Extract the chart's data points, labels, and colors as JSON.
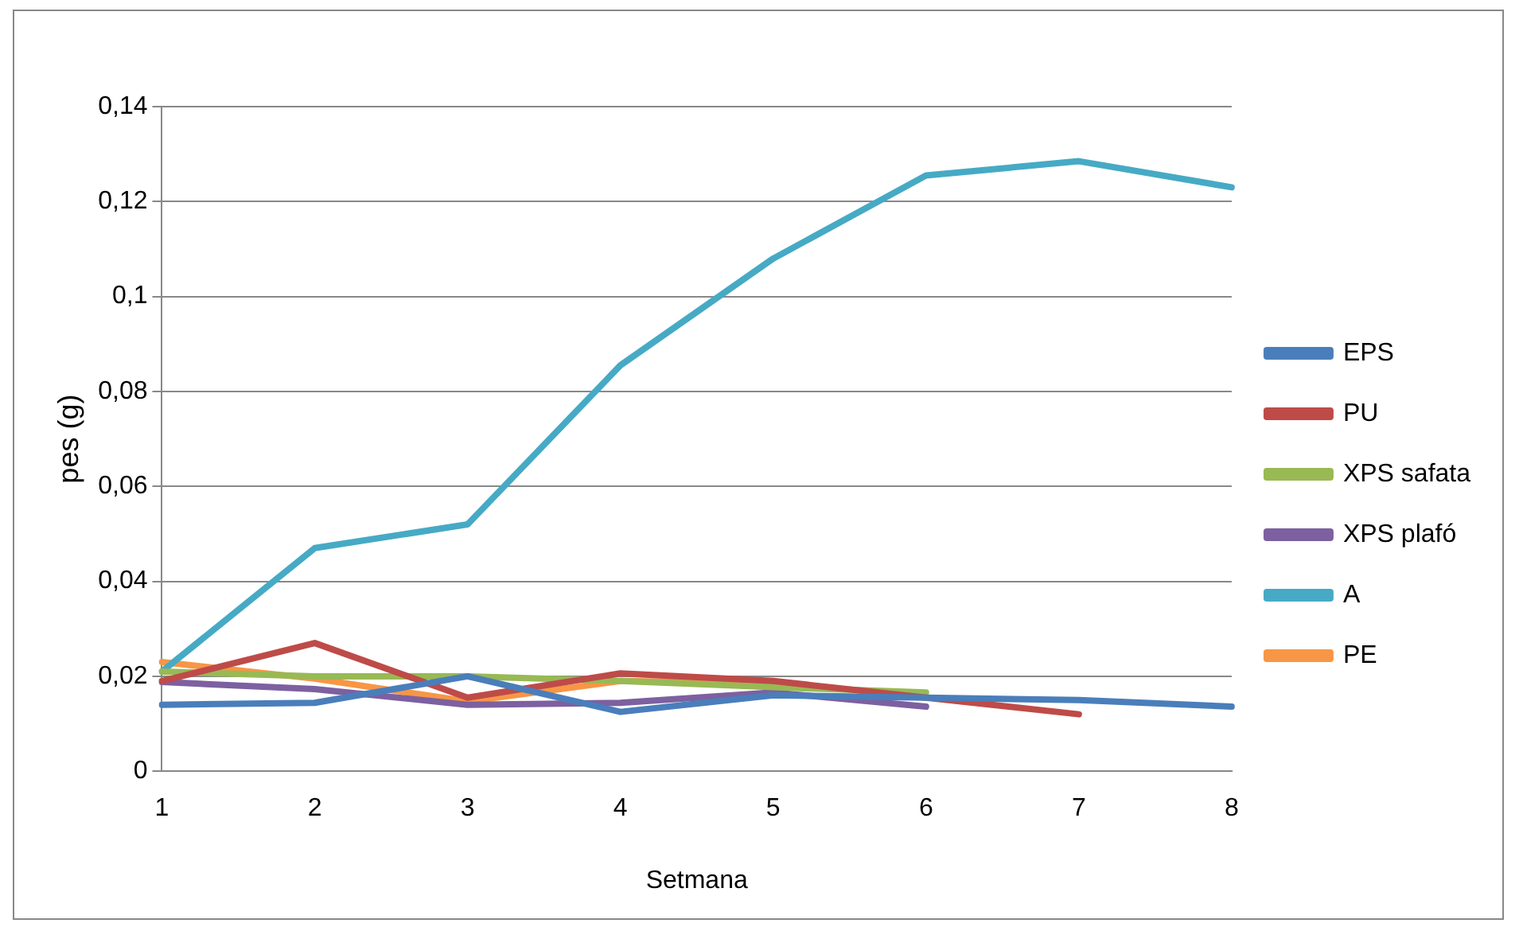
{
  "chart_data": {
    "type": "line",
    "xlabel": "Setmana",
    "ylabel": "pes (g)",
    "categories": [
      "1",
      "2",
      "3",
      "4",
      "5",
      "6",
      "7",
      "8"
    ],
    "ylim": [
      0,
      0.14
    ],
    "yticks": [
      {
        "value": 0,
        "label": "0"
      },
      {
        "value": 0.02,
        "label": "0,02"
      },
      {
        "value": 0.04,
        "label": "0,04"
      },
      {
        "value": 0.06,
        "label": "0,06"
      },
      {
        "value": 0.08,
        "label": "0,08"
      },
      {
        "value": 0.1,
        "label": "0,1"
      },
      {
        "value": 0.12,
        "label": "0,12"
      },
      {
        "value": 0.14,
        "label": "0,14"
      }
    ],
    "grid": "y",
    "legend": "right",
    "marker": "none",
    "line_style": "solid",
    "series": [
      {
        "name": "EPS",
        "color": "#4a7ebb",
        "values": [
          0.014,
          0.0144,
          0.02,
          0.0125,
          0.016,
          0.0155,
          0.015,
          0.0136
        ]
      },
      {
        "name": "PU",
        "color": "#be4b48",
        "values": [
          0.019,
          0.027,
          0.0155,
          0.0206,
          0.019,
          0.0155,
          0.012,
          null
        ]
      },
      {
        "name": "XPS safata",
        "color": "#98b954",
        "values": [
          0.021,
          0.02,
          0.02,
          0.019,
          0.0177,
          0.0166,
          null,
          null
        ]
      },
      {
        "name": "XPS plafó",
        "color": "#7d60a0",
        "values": [
          0.0188,
          0.0173,
          0.014,
          0.0144,
          0.0166,
          0.0136,
          null,
          null
        ]
      },
      {
        "name": "A",
        "color": "#46aac5",
        "values": [
          0.021,
          0.047,
          0.052,
          0.0855,
          0.108,
          0.1255,
          0.1285,
          0.123
        ]
      },
      {
        "name": "PE",
        "color": "#f79646",
        "values": [
          0.023,
          0.0195,
          0.0147,
          0.019,
          0.0185,
          null,
          null,
          null
        ]
      }
    ]
  }
}
